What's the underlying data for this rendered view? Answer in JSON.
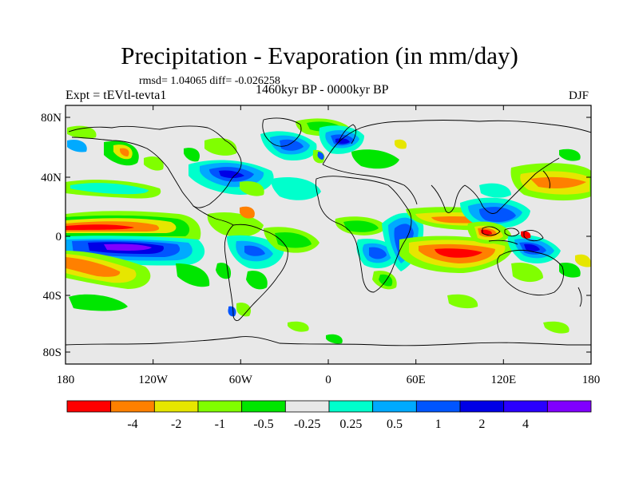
{
  "header": {
    "title": "Precipitation - Evaporation (in mm/day)",
    "stats": "rmsd= 1.04065 diff= -0.026258",
    "experiment": "Expt = tEVtl-tevta1",
    "period": "1460kyr BP - 0000kyr BP",
    "season": "DJF"
  },
  "map": {
    "projection": "cylindrical-equidistant",
    "background_color": "#e8e8e8",
    "lat_ticks": [
      "80N",
      "40N",
      "0",
      "40S",
      "80S"
    ],
    "lon_ticks": [
      "180",
      "120W",
      "60W",
      "0",
      "60E",
      "120E",
      "180"
    ]
  },
  "colorbar": {
    "colors": [
      "#ff0000",
      "#ff8000",
      "#e6e600",
      "#80ff00",
      "#00e600",
      "#e8e8e8",
      "#00ffcc",
      "#00aaff",
      "#0055ff",
      "#0000e6",
      "#2a00ff",
      "#8000ff"
    ],
    "labels": [
      "-4",
      "-2",
      "-1",
      "-0.5",
      "-0.25",
      "0.25",
      "0.5",
      "1",
      "2",
      "4"
    ]
  }
}
